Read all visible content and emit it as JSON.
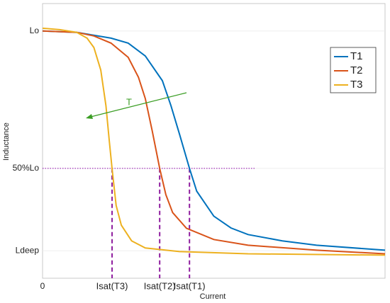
{
  "chart_data": {
    "type": "line",
    "x_label": "Current",
    "y_label": "Inductance",
    "xlim": [
      0,
      10
    ],
    "ylim": [
      0.1,
      1.1
    ],
    "xticks": [
      0,
      {
        "value": 2.03,
        "label": "Isat(T3)"
      },
      {
        "value": 3.42,
        "label": "Isat(T2)"
      },
      {
        "value": 4.29,
        "label": "Isat(T1)"
      }
    ],
    "yticks": [
      {
        "value": 0.2,
        "label": "Ldeep"
      },
      {
        "value": 0.5,
        "label": "50%Lo"
      },
      {
        "value": 1,
        "label": "Lo"
      }
    ],
    "grid": true,
    "legend": "upper right",
    "annotation": "T",
    "series": [
      {
        "name": "T1",
        "color": "#0072bd",
        "x": [
          0,
          1,
          2,
          2.5,
          3,
          3.5,
          3.75,
          4,
          4.29,
          4.5,
          5,
          5.5,
          6,
          7,
          8,
          10
        ],
        "values": [
          1.0,
          0.995,
          0.974,
          0.956,
          0.909,
          0.819,
          0.728,
          0.624,
          0.5,
          0.417,
          0.326,
          0.283,
          0.259,
          0.236,
          0.22,
          0.202
        ]
      },
      {
        "name": "T2",
        "color": "#d95319",
        "x": [
          0,
          1,
          1.5,
          2,
          2.5,
          2.8,
          3,
          3.2,
          3.42,
          3.6,
          3.8,
          4.2,
          5,
          6,
          8,
          10
        ],
        "values": [
          1.0,
          0.995,
          0.982,
          0.956,
          0.904,
          0.832,
          0.754,
          0.637,
          0.5,
          0.404,
          0.339,
          0.282,
          0.241,
          0.22,
          0.202,
          0.189
        ]
      },
      {
        "name": "T3",
        "color": "#edb120",
        "x": [
          0,
          0.5,
          1,
          1.3,
          1.5,
          1.7,
          1.85,
          1.95,
          2.03,
          2.15,
          2.3,
          2.6,
          3,
          4,
          6,
          10
        ],
        "values": [
          1.01,
          1.005,
          0.995,
          0.974,
          0.94,
          0.858,
          0.728,
          0.598,
          0.5,
          0.365,
          0.293,
          0.236,
          0.21,
          0.197,
          0.189,
          0.184
        ]
      }
    ]
  }
}
